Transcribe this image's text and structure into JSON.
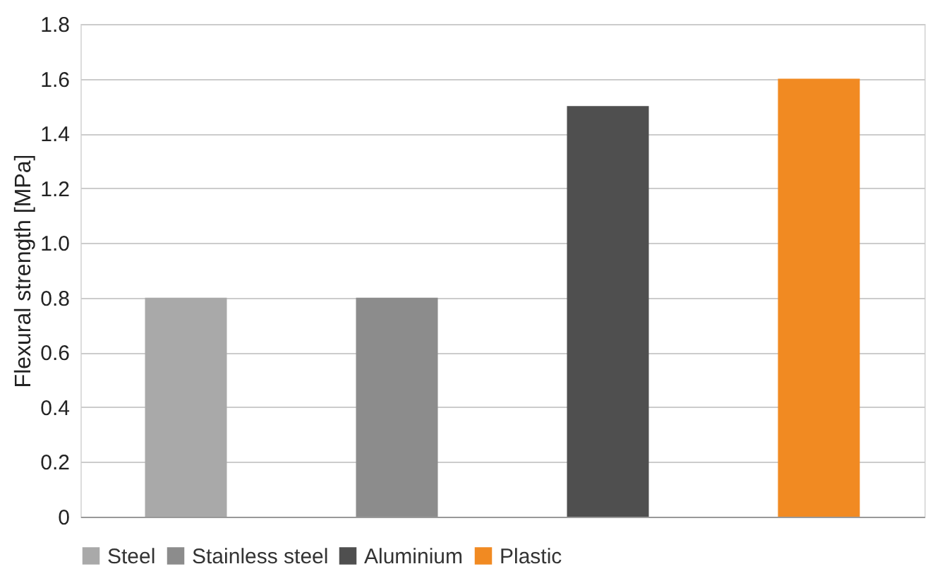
{
  "chart_data": {
    "type": "bar",
    "ylabel": "Flexural strength [MPa]",
    "categories": [
      null,
      null,
      null,
      null
    ],
    "series": [
      {
        "name": "Steel",
        "color": "#a9a9a9",
        "values": [
          0.8,
          null,
          null,
          null
        ]
      },
      {
        "name": "Stainless steel",
        "color": "#8c8c8c",
        "values": [
          null,
          0.8,
          null,
          null
        ]
      },
      {
        "name": "Aluminium",
        "color": "#4f4f4f",
        "values": [
          null,
          null,
          1.5,
          null
        ]
      },
      {
        "name": "Plastic",
        "color": "#f18a22",
        "values": [
          null,
          null,
          null,
          1.6
        ]
      }
    ],
    "ylim": [
      0,
      1.8
    ],
    "yticks": [
      0,
      0.2,
      0.4,
      0.6,
      0.8,
      {
        "value": 1,
        "label": "1.0"
      },
      1.2,
      1.4,
      1.6,
      1.8
    ],
    "grid": "y",
    "legend": "bottom"
  }
}
